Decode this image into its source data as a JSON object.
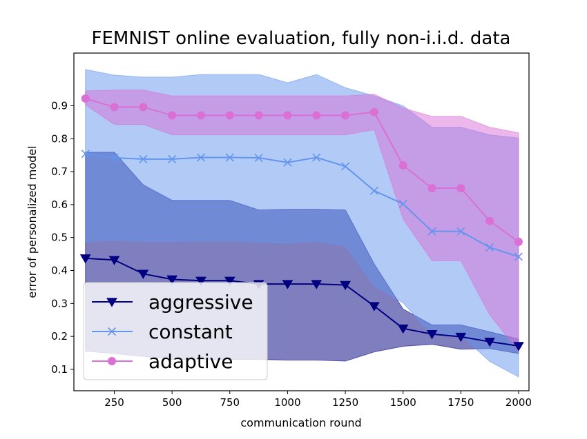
{
  "chart_data": {
    "type": "line",
    "title": "FEMNIST online evaluation, fully non-i.i.d. data",
    "xlabel": "communication round",
    "ylabel": "error of personalized model",
    "xlim": [
      75,
      2045
    ],
    "ylim": [
      0.035,
      1.06
    ],
    "xticks": [
      250,
      500,
      750,
      1000,
      1250,
      1500,
      1750,
      2000
    ],
    "xtick_labels": [
      "250",
      "500",
      "750",
      "1000",
      "1250",
      "1500",
      "1750",
      "2000"
    ],
    "yticks": [
      0.1,
      0.2,
      0.3,
      0.4,
      0.5,
      0.6,
      0.7,
      0.8,
      0.9
    ],
    "ytick_labels": [
      "0.1",
      "0.2",
      "0.3",
      "0.4",
      "0.5",
      "0.6",
      "0.7",
      "0.8",
      "0.9"
    ],
    "grid": false,
    "legend_position": "lower-left",
    "x": [
      125,
      250,
      375,
      500,
      625,
      750,
      875,
      1000,
      1125,
      1250,
      1375,
      1500,
      1625,
      1750,
      1875,
      2000
    ],
    "series": [
      {
        "name": "aggressive",
        "color": "#000080",
        "fill_color": "#000080",
        "marker": "triangle-down",
        "values": [
          0.437,
          0.432,
          0.39,
          0.373,
          0.369,
          0.369,
          0.359,
          0.359,
          0.359,
          0.356,
          0.292,
          0.224,
          0.207,
          0.199,
          0.184,
          0.171
        ],
        "upper": [
          0.759,
          0.759,
          0.66,
          0.613,
          0.613,
          0.613,
          0.584,
          0.586,
          0.586,
          0.584,
          0.42,
          0.283,
          0.235,
          0.235,
          0.214,
          0.192
        ],
        "lower": [
          0.155,
          0.148,
          0.139,
          0.13,
          0.13,
          0.13,
          0.13,
          0.128,
          0.128,
          0.125,
          0.153,
          0.17,
          0.176,
          0.161,
          0.163,
          0.148
        ]
      },
      {
        "name": "constant",
        "color": "#6495ED",
        "fill_color": "#6495ED",
        "marker": "x",
        "values": [
          0.754,
          0.742,
          0.738,
          0.738,
          0.743,
          0.743,
          0.742,
          0.728,
          0.743,
          0.716,
          0.642,
          0.602,
          0.519,
          0.519,
          0.47,
          0.442
        ],
        "upper": [
          1.01,
          0.993,
          0.987,
          0.987,
          0.995,
          0.995,
          0.995,
          0.97,
          0.995,
          0.955,
          0.93,
          0.9,
          0.835,
          0.835,
          0.812,
          0.802
        ],
        "lower": [
          0.487,
          0.492,
          0.488,
          0.488,
          0.489,
          0.489,
          0.487,
          0.482,
          0.489,
          0.474,
          0.354,
          0.302,
          0.204,
          0.204,
          0.124,
          0.077
        ]
      },
      {
        "name": "adaptive",
        "color": "#DA70D6",
        "fill_color": "#DA70D6",
        "marker": "circle",
        "values": [
          0.922,
          0.896,
          0.896,
          0.871,
          0.871,
          0.871,
          0.871,
          0.871,
          0.871,
          0.871,
          0.881,
          0.719,
          0.65,
          0.65,
          0.55,
          0.487
        ],
        "upper": [
          0.945,
          0.948,
          0.948,
          0.93,
          0.93,
          0.93,
          0.93,
          0.93,
          0.93,
          0.93,
          0.935,
          0.893,
          0.868,
          0.868,
          0.835,
          0.818
        ],
        "lower": [
          0.903,
          0.843,
          0.843,
          0.812,
          0.812,
          0.812,
          0.812,
          0.812,
          0.812,
          0.812,
          0.827,
          0.556,
          0.43,
          0.43,
          0.265,
          0.155
        ]
      }
    ]
  }
}
